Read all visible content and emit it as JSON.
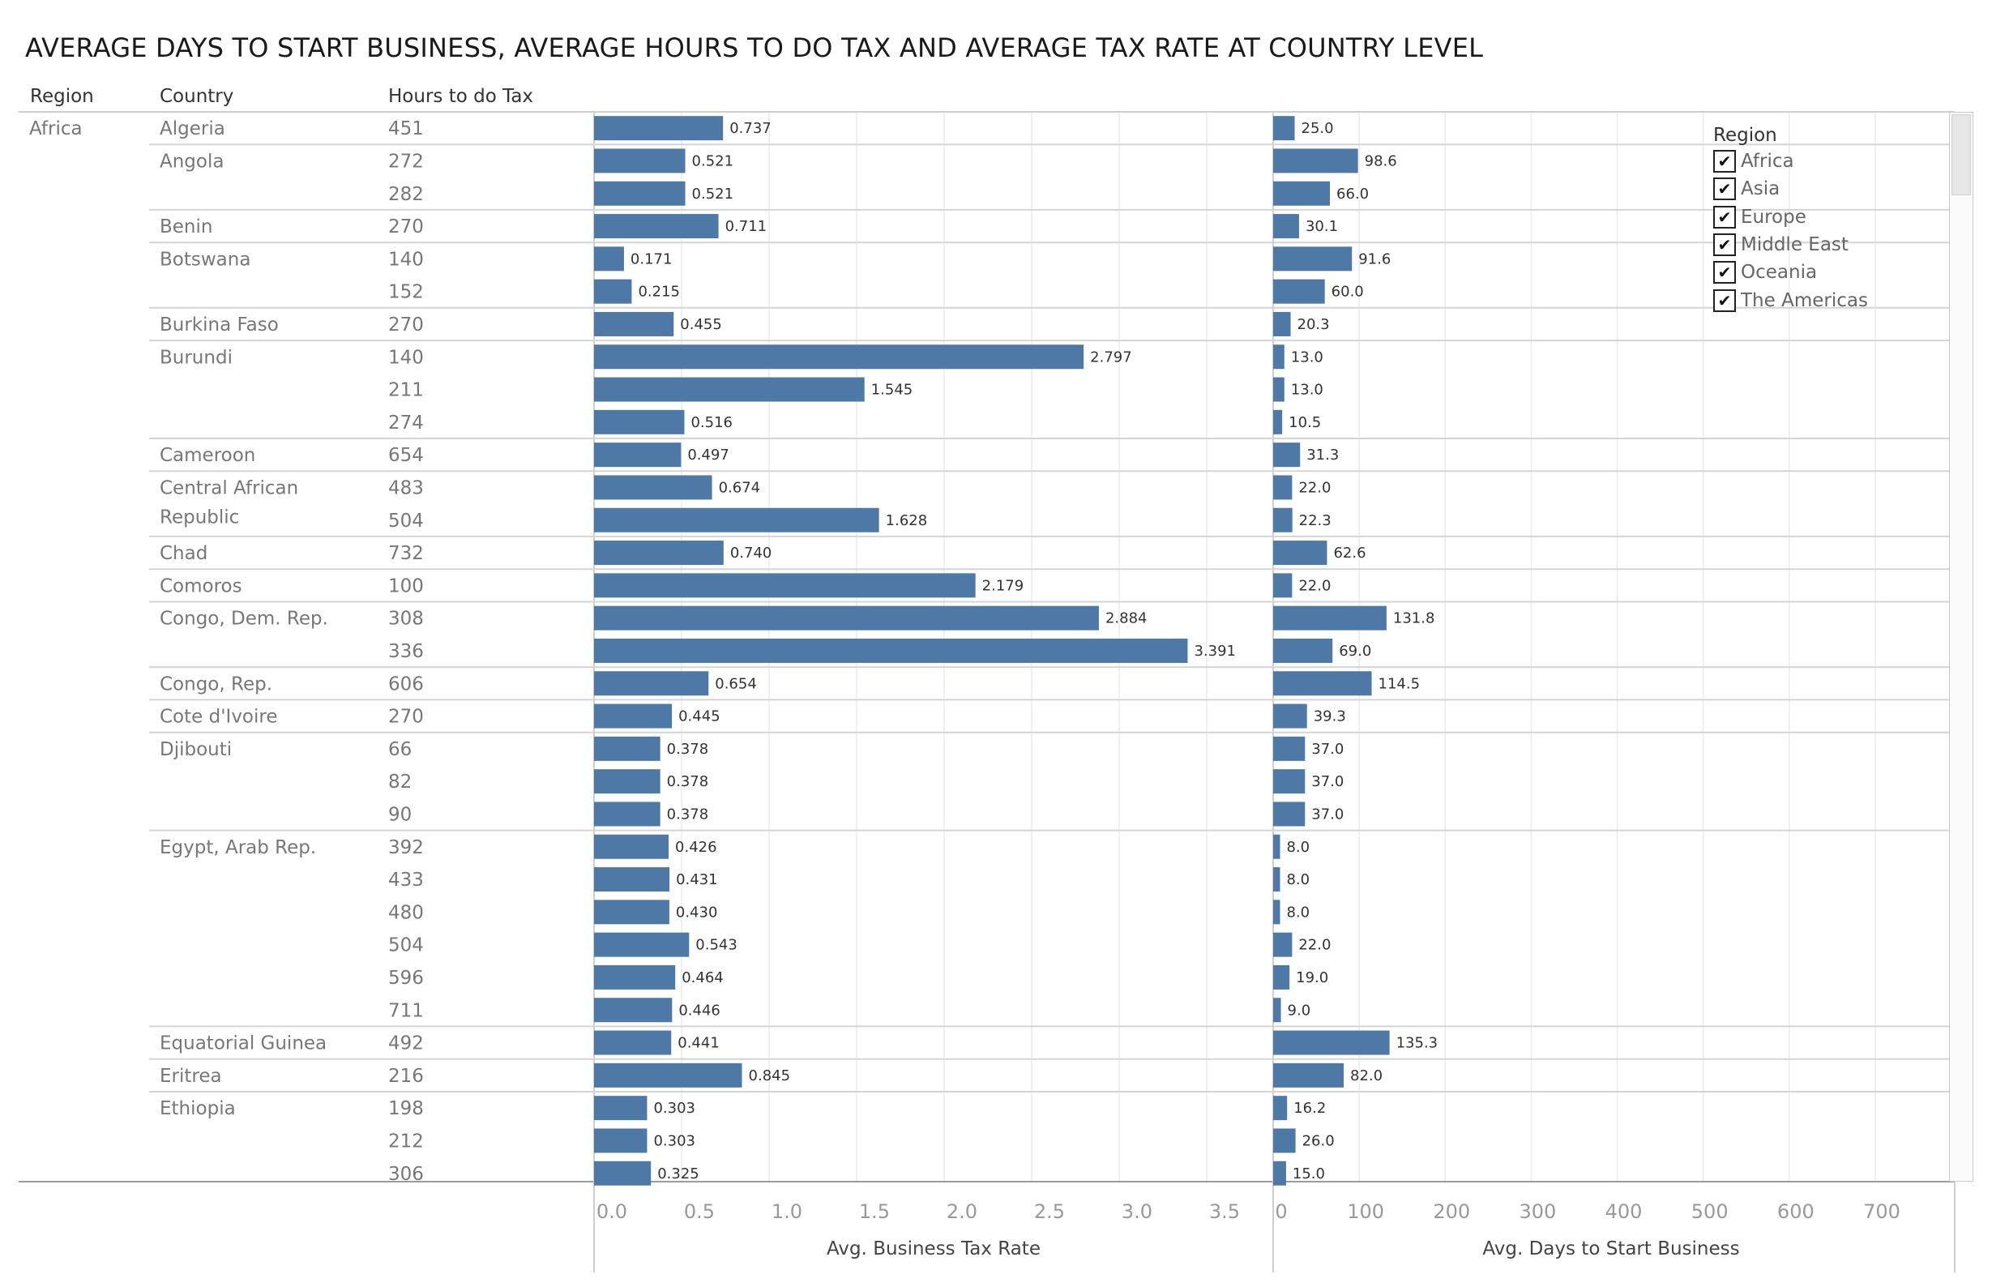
{
  "title": "AVERAGE DAYS TO START BUSINESS, AVERAGE HOURS TO DO TAX AND AVERAGE TAX RATE AT COUNTRY LEVEL",
  "headers": {
    "region": "Region",
    "country": "Country",
    "hours": "Hours to do Tax"
  },
  "legend": {
    "title": "Region",
    "items": [
      {
        "label": "Africa",
        "checked": true
      },
      {
        "label": "Asia",
        "checked": true
      },
      {
        "label": "Europe",
        "checked": true
      },
      {
        "label": "Middle East",
        "checked": true
      },
      {
        "label": "Oceania",
        "checked": true
      },
      {
        "label": "The Americas",
        "checked": true
      }
    ]
  },
  "colors": {
    "bar": "#4e79a7",
    "grid": "#ebebeb",
    "row_line": "#d4d4d4"
  },
  "chart_data": {
    "type": "bar",
    "orientation": "horizontal",
    "region_label": "Africa",
    "rows": [
      {
        "country": "Algeria",
        "hours": "451",
        "tax_rate": 0.737,
        "tax_rate_label": "0.737",
        "days": 25.0,
        "days_label": "25.0"
      },
      {
        "country": "Angola",
        "hours": "272",
        "tax_rate": 0.521,
        "tax_rate_label": "0.521",
        "days": 98.6,
        "days_label": "98.6"
      },
      {
        "country": "",
        "hours": "282",
        "tax_rate": 0.521,
        "tax_rate_label": "0.521",
        "days": 66.0,
        "days_label": "66.0"
      },
      {
        "country": "Benin",
        "hours": "270",
        "tax_rate": 0.711,
        "tax_rate_label": "0.711",
        "days": 30.1,
        "days_label": "30.1"
      },
      {
        "country": "Botswana",
        "hours": "140",
        "tax_rate": 0.171,
        "tax_rate_label": "0.171",
        "days": 91.6,
        "days_label": "91.6"
      },
      {
        "country": "",
        "hours": "152",
        "tax_rate": 0.215,
        "tax_rate_label": "0.215",
        "days": 60.0,
        "days_label": "60.0"
      },
      {
        "country": "Burkina Faso",
        "hours": "270",
        "tax_rate": 0.455,
        "tax_rate_label": "0.455",
        "days": 20.3,
        "days_label": "20.3"
      },
      {
        "country": "Burundi",
        "hours": "140",
        "tax_rate": 2.797,
        "tax_rate_label": "2.797",
        "days": 13.0,
        "days_label": "13.0"
      },
      {
        "country": "",
        "hours": "211",
        "tax_rate": 1.545,
        "tax_rate_label": "1.545",
        "days": 13.0,
        "days_label": "13.0"
      },
      {
        "country": "",
        "hours": "274",
        "tax_rate": 0.516,
        "tax_rate_label": "0.516",
        "days": 10.5,
        "days_label": "10.5"
      },
      {
        "country": "Cameroon",
        "hours": "654",
        "tax_rate": 0.497,
        "tax_rate_label": "0.497",
        "days": 31.3,
        "days_label": "31.3"
      },
      {
        "country": "Central African",
        "country_line2": "Republic",
        "hours": "483",
        "tax_rate": 0.674,
        "tax_rate_label": "0.674",
        "days": 22.0,
        "days_label": "22.0"
      },
      {
        "country": "",
        "hours": "504",
        "tax_rate": 1.628,
        "tax_rate_label": "1.628",
        "days": 22.3,
        "days_label": "22.3"
      },
      {
        "country": "Chad",
        "hours": "732",
        "tax_rate": 0.74,
        "tax_rate_label": "0.740",
        "days": 62.6,
        "days_label": "62.6"
      },
      {
        "country": "Comoros",
        "hours": "100",
        "tax_rate": 2.179,
        "tax_rate_label": "2.179",
        "days": 22.0,
        "days_label": "22.0"
      },
      {
        "country": "Congo, Dem. Rep.",
        "hours": "308",
        "tax_rate": 2.884,
        "tax_rate_label": "2.884",
        "days": 131.8,
        "days_label": "131.8"
      },
      {
        "country": "",
        "hours": "336",
        "tax_rate": 3.391,
        "tax_rate_label": "3.391",
        "days": 69.0,
        "days_label": "69.0"
      },
      {
        "country": "Congo, Rep.",
        "hours": "606",
        "tax_rate": 0.654,
        "tax_rate_label": "0.654",
        "days": 114.5,
        "days_label": "114.5"
      },
      {
        "country": "Cote d'Ivoire",
        "hours": "270",
        "tax_rate": 0.445,
        "tax_rate_label": "0.445",
        "days": 39.3,
        "days_label": "39.3"
      },
      {
        "country": "Djibouti",
        "hours": "66",
        "tax_rate": 0.378,
        "tax_rate_label": "0.378",
        "days": 37.0,
        "days_label": "37.0"
      },
      {
        "country": "",
        "hours": "82",
        "tax_rate": 0.378,
        "tax_rate_label": "0.378",
        "days": 37.0,
        "days_label": "37.0"
      },
      {
        "country": "",
        "hours": "90",
        "tax_rate": 0.378,
        "tax_rate_label": "0.378",
        "days": 37.0,
        "days_label": "37.0"
      },
      {
        "country": "Egypt, Arab Rep.",
        "hours": "392",
        "tax_rate": 0.426,
        "tax_rate_label": "0.426",
        "days": 8.0,
        "days_label": "8.0"
      },
      {
        "country": "",
        "hours": "433",
        "tax_rate": 0.431,
        "tax_rate_label": "0.431",
        "days": 8.0,
        "days_label": "8.0"
      },
      {
        "country": "",
        "hours": "480",
        "tax_rate": 0.43,
        "tax_rate_label": "0.430",
        "days": 8.0,
        "days_label": "8.0"
      },
      {
        "country": "",
        "hours": "504",
        "tax_rate": 0.543,
        "tax_rate_label": "0.543",
        "days": 22.0,
        "days_label": "22.0"
      },
      {
        "country": "",
        "hours": "596",
        "tax_rate": 0.464,
        "tax_rate_label": "0.464",
        "days": 19.0,
        "days_label": "19.0"
      },
      {
        "country": "",
        "hours": "711",
        "tax_rate": 0.446,
        "tax_rate_label": "0.446",
        "days": 9.0,
        "days_label": "9.0"
      },
      {
        "country": "Equatorial Guinea",
        "hours": "492",
        "tax_rate": 0.441,
        "tax_rate_label": "0.441",
        "days": 135.3,
        "days_label": "135.3"
      },
      {
        "country": "Eritrea",
        "hours": "216",
        "tax_rate": 0.845,
        "tax_rate_label": "0.845",
        "days": 82.0,
        "days_label": "82.0"
      },
      {
        "country": "Ethiopia",
        "hours": "198",
        "tax_rate": 0.303,
        "tax_rate_label": "0.303",
        "days": 16.2,
        "days_label": "16.2"
      },
      {
        "country": "",
        "hours": "212",
        "tax_rate": 0.303,
        "tax_rate_label": "0.303",
        "days": 26.0,
        "days_label": "26.0"
      },
      {
        "country": "",
        "hours": "306",
        "tax_rate": 0.325,
        "tax_rate_label": "0.325",
        "days": 15.0,
        "days_label": "15.0"
      }
    ],
    "group_starts": [
      0,
      1,
      3,
      4,
      6,
      7,
      10,
      11,
      13,
      14,
      15,
      17,
      18,
      19,
      22,
      28,
      29,
      30
    ],
    "tax_axis": {
      "label": "Avg. Business Tax Rate",
      "min": 0,
      "max": 3.5,
      "ticks": [
        0,
        0.5,
        1.0,
        1.5,
        2.0,
        2.5,
        3.0,
        3.5
      ],
      "tick_labels": [
        "0.0",
        "0.5",
        "1.0",
        "1.5",
        "2.0",
        "2.5",
        "3.0",
        "3.5"
      ]
    },
    "days_axis": {
      "label": "Avg. Days to Start Business",
      "min": 0,
      "max": 700,
      "ticks": [
        0,
        100,
        200,
        300,
        400,
        500,
        600,
        700
      ],
      "tick_labels": [
        "0",
        "100",
        "200",
        "300",
        "400",
        "500",
        "600",
        "700"
      ]
    },
    "grid": true,
    "legend_position": "top-right"
  }
}
